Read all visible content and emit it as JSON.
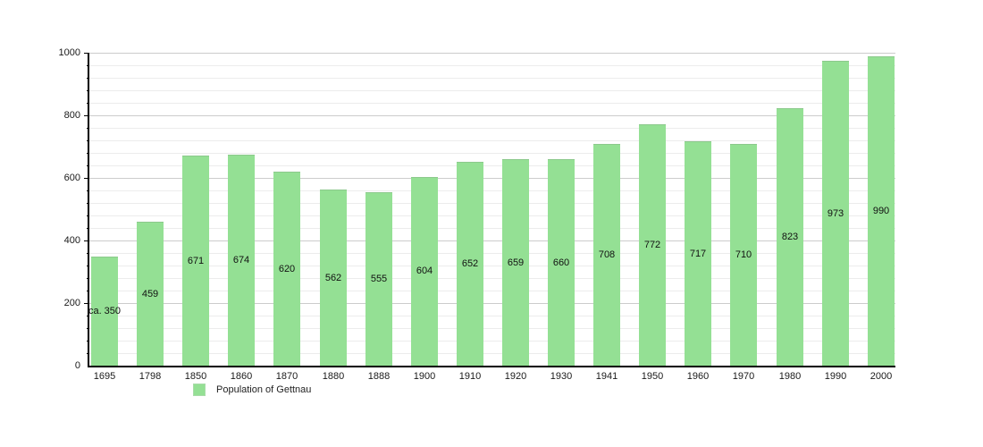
{
  "chart_data": {
    "type": "bar",
    "title": "",
    "categories": [
      "1695",
      "1798",
      "1850",
      "1860",
      "1870",
      "1880",
      "1888",
      "1900",
      "1910",
      "1920",
      "1930",
      "1941",
      "1950",
      "1960",
      "1970",
      "1980",
      "1990",
      "2000"
    ],
    "values": [
      350,
      459,
      671,
      674,
      620,
      562,
      555,
      604,
      652,
      659,
      660,
      708,
      772,
      717,
      710,
      823,
      973,
      990
    ],
    "bar_labels": [
      "ca. 350",
      "459",
      "671",
      "674",
      "620",
      "562",
      "555",
      "604",
      "652",
      "659",
      "660",
      "708",
      "772",
      "717",
      "710",
      "823",
      "973",
      "990"
    ],
    "xlabel": "",
    "ylabel": "",
    "ylim": [
      0,
      1000
    ],
    "y_major_ticks": [
      0,
      200,
      400,
      600,
      800,
      1000
    ],
    "y_minor_step": 40,
    "grid": "horizontal",
    "legend_position": "bottom",
    "legend": {
      "label": "Population of Gettnau"
    },
    "colors": {
      "bar_fill": "#94e094",
      "grid_major": "#cccccc",
      "grid_minor": "#ececec",
      "axis": "#000000",
      "text": "#1a1a1a"
    }
  }
}
